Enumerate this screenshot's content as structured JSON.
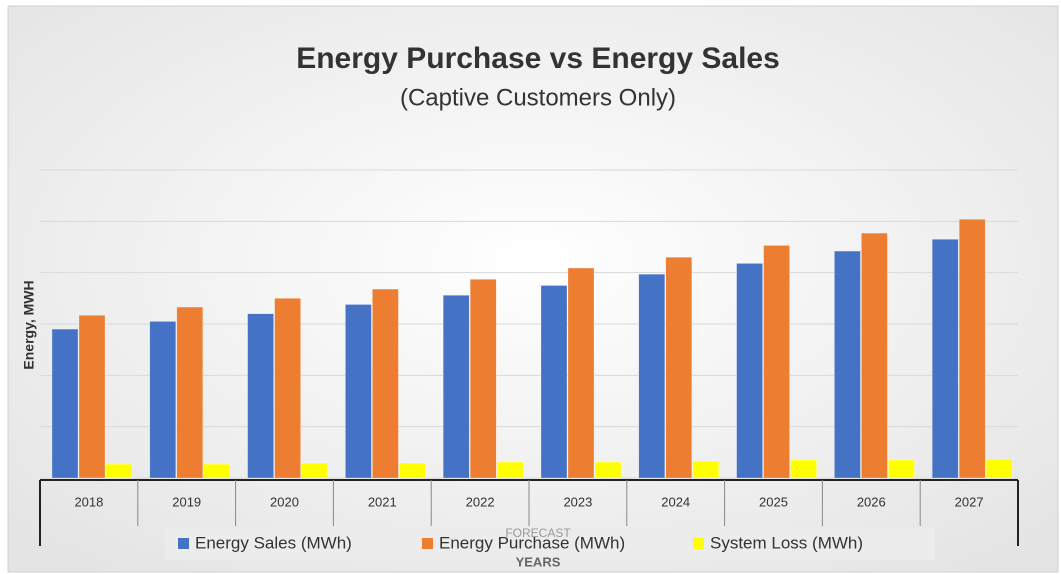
{
  "chart_data": {
    "type": "bar",
    "title": "Energy Purchase vs Energy Sales",
    "subtitle": "(Captive Customers Only)",
    "y_label": "Energy, MWH",
    "x_group_label": "FORECAST",
    "x_label": "YEARS",
    "categories": [
      "2018",
      "2019",
      "2020",
      "2021",
      "2022",
      "2023",
      "2024",
      "2025",
      "2026",
      "2027"
    ],
    "series": [
      {
        "name": "Energy Sales (MWh)",
        "color": "#4472c4",
        "values": [
          2.9,
          3.05,
          3.2,
          3.38,
          3.56,
          3.75,
          3.97,
          4.18,
          4.42,
          4.65
        ]
      },
      {
        "name": "Energy Purchase (MWh)",
        "color": "#ed7d31",
        "values": [
          3.17,
          3.33,
          3.5,
          3.68,
          3.87,
          4.09,
          4.3,
          4.53,
          4.77,
          5.04
        ]
      },
      {
        "name": "System Loss (MWh)",
        "color": "#ffff00",
        "values": [
          0.27,
          0.27,
          0.29,
          0.29,
          0.31,
          0.31,
          0.33,
          0.35,
          0.35,
          0.37
        ]
      }
    ],
    "ylim": [
      0,
      6
    ],
    "yticks": [
      0,
      1,
      2,
      3,
      4,
      5,
      6
    ],
    "grid": true
  }
}
